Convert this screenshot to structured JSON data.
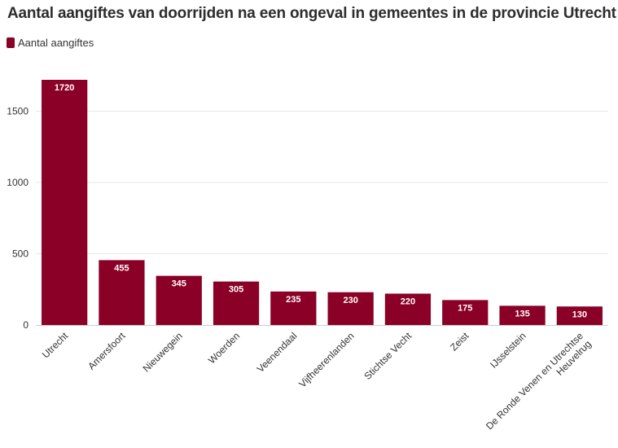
{
  "chart_data": {
    "type": "bar",
    "title": "Aantal aangiftes van doorrijden na een ongeval in gemeentes in de provincie Utrecht",
    "legend": [
      {
        "name": "Aantal aangiftes",
        "color": "#8b0026"
      }
    ],
    "categories": [
      "Utrecht",
      "Amersfoort",
      "Nieuwegein",
      "Woerden",
      "Veenendaal",
      "Vijfheerenlanden",
      "Stichtse Vecht",
      "Zeist",
      "IJsselstein",
      "De Ronde Venen en Utrechtse Heuvelrug"
    ],
    "category_lines": [
      [
        "Utrecht"
      ],
      [
        "Amersfoort"
      ],
      [
        "Nieuwegein"
      ],
      [
        "Woerden"
      ],
      [
        "Veenendaal"
      ],
      [
        "Vijfheerenlanden"
      ],
      [
        "Stichtse Vecht"
      ],
      [
        "Zeist"
      ],
      [
        "IJsselstein"
      ],
      [
        "De Ronde Venen en Utrechtse",
        "Heuvelrug"
      ]
    ],
    "series": [
      {
        "name": "Aantal aangiftes",
        "values": [
          1720,
          455,
          345,
          305,
          235,
          230,
          220,
          175,
          135,
          130
        ]
      }
    ],
    "yticks": [
      0,
      500,
      1000,
      1500
    ],
    "ylim": [
      0,
      1800
    ],
    "xlabel": "",
    "ylabel": "",
    "grid": true,
    "bar_color": "#8b0026"
  }
}
